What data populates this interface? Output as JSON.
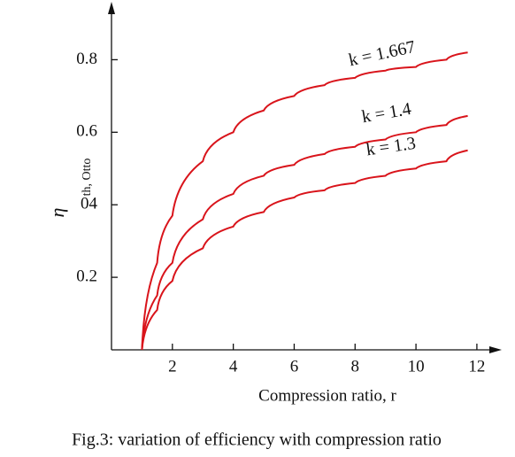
{
  "chart_data": {
    "type": "line",
    "ylabel": "η",
    "ylabel_sub": "th, Otto",
    "xlabel": "Compression ratio, r",
    "caption": "Fig.3: variation of efficiency with compression ratio",
    "x": [
      1,
      1.5,
      2,
      3,
      4,
      5,
      6,
      7,
      8,
      9,
      10,
      11,
      11.7
    ],
    "series": [
      {
        "name": "k = 1.667",
        "color": "#d9141b",
        "values": [
          0,
          0.24,
          0.37,
          0.52,
          0.6,
          0.66,
          0.7,
          0.73,
          0.75,
          0.77,
          0.78,
          0.8,
          0.82
        ]
      },
      {
        "name": "k = 1.4",
        "color": "#d9141b",
        "values": [
          0,
          0.15,
          0.24,
          0.36,
          0.43,
          0.48,
          0.51,
          0.54,
          0.56,
          0.58,
          0.6,
          0.62,
          0.645
        ]
      },
      {
        "name": "k = 1.3",
        "color": "#d9141b",
        "values": [
          0,
          0.11,
          0.19,
          0.28,
          0.34,
          0.38,
          0.42,
          0.44,
          0.46,
          0.48,
          0.5,
          0.52,
          0.55
        ]
      }
    ],
    "xlim": [
      0,
      12.7
    ],
    "ylim": [
      0,
      0.95
    ],
    "xticks": [
      2,
      4,
      6,
      8,
      10,
      12
    ],
    "yticks": [
      0.2,
      {
        "value": 0.4,
        "label": "04"
      },
      0.6,
      0.8
    ]
  }
}
